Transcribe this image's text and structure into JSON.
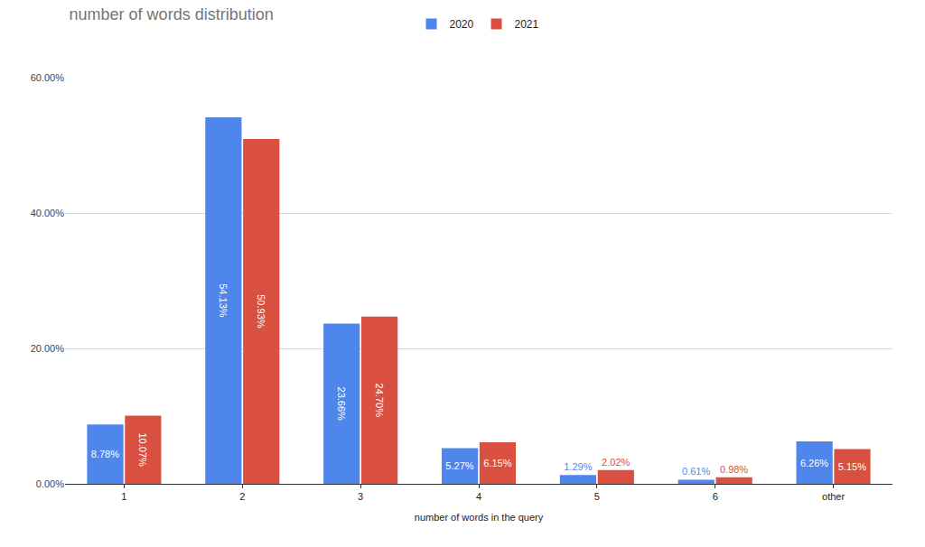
{
  "chart_data": {
    "type": "bar",
    "title": "number of words distribution",
    "x_label": "number of words in the query",
    "categories": [
      "1",
      "2",
      "3",
      "4",
      "5",
      "6",
      "other"
    ],
    "series": [
      {
        "name": "2020",
        "color": "#4f86ec",
        "values": [
          8.78,
          54.13,
          23.66,
          5.27,
          1.29,
          0.61,
          6.26
        ],
        "value_labels": [
          "8.78%",
          "54.13%",
          "23.66%",
          "5.27%",
          "1.29%",
          "0.61%",
          "6.26%"
        ]
      },
      {
        "name": "2021",
        "color": "#d95040",
        "values": [
          10.07,
          50.93,
          24.7,
          6.15,
          2.02,
          0.98,
          5.15
        ],
        "value_labels": [
          "10.07%",
          "50.93%",
          "24.70%",
          "6.15%",
          "2.02%",
          "0.98%",
          "5.15%"
        ]
      }
    ],
    "ylim": [
      0,
      60
    ],
    "yticks": [
      {
        "value": 0,
        "label": "0.00%"
      },
      {
        "value": 20,
        "label": "20.00%"
      },
      {
        "value": 40,
        "label": "40.00%"
      },
      {
        "value": 60,
        "label": "60.00%"
      }
    ],
    "grid": true,
    "legend": "top",
    "data_labels": true
  }
}
